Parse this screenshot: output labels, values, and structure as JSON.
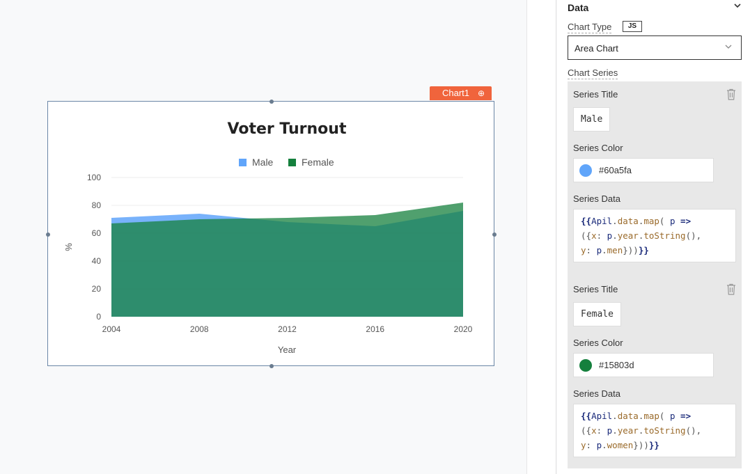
{
  "widget": {
    "name": "Chart1",
    "settings_icon": "gear-icon"
  },
  "chart_data": {
    "type": "area",
    "title": "Voter Turnout",
    "xlabel": "Year",
    "ylabel": "%",
    "x": [
      "2004",
      "2008",
      "2012",
      "2016",
      "2020"
    ],
    "ylim": [
      0,
      100
    ],
    "yticks": [
      "0",
      "20",
      "40",
      "60",
      "80",
      "100"
    ],
    "legend_position": "top",
    "series": [
      {
        "name": "Male",
        "color": "#60a5fa",
        "values": [
          71,
          74,
          68,
          65,
          76
        ]
      },
      {
        "name": "Female",
        "color": "#15803d",
        "values": [
          67,
          70,
          71,
          73,
          82
        ]
      }
    ]
  },
  "pane": {
    "section_title": "Data",
    "chart_type_label": "Chart Type",
    "js_badge": "JS",
    "chart_type_value": "Area Chart",
    "chart_series_label": "Chart Series",
    "series": [
      {
        "title_label": "Series Title",
        "title_value": "Male",
        "color_label": "Series Color",
        "color_value": "#60a5fa",
        "data_label": "Series Data",
        "data_expr": "{{Apil.data.map( p => ({x: p.year.toString(), y: p.men}))}}",
        "field": "men"
      },
      {
        "title_label": "Series Title",
        "title_value": "Female",
        "color_label": "Series Color",
        "color_value": "#15803d",
        "data_label": "Series Data",
        "data_expr": "{{Apil.data.map( p => ({x: p.year.toString(), y: p.women}))}}",
        "field": "women"
      }
    ]
  }
}
